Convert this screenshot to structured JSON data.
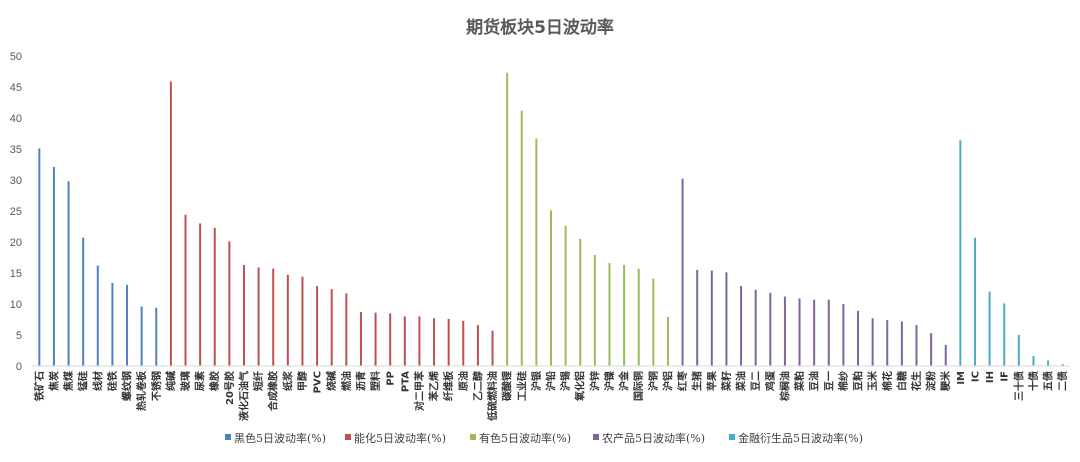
{
  "chart_data": {
    "type": "bar",
    "title": "期货板块5日波动率",
    "xlabel": "",
    "ylabel": "",
    "ylim": [
      0,
      50
    ],
    "yticks": [
      0,
      5,
      10,
      15,
      20,
      25,
      30,
      35,
      40,
      45,
      50
    ],
    "grid": false,
    "legend_position": "bottom",
    "series": [
      {
        "name": "黑色5日波动率(%)",
        "color": "#4f81bd",
        "categories": [
          "铁矿石",
          "焦炭",
          "焦煤",
          "锰硅",
          "线材",
          "硅铁",
          "螺纹钢",
          "热轧卷板",
          "不锈钢"
        ],
        "values": [
          35.1,
          32.1,
          29.8,
          20.7,
          16.2,
          13.4,
          13.1,
          9.6,
          9.4
        ]
      },
      {
        "name": "能化5日波动率(%)",
        "color": "#c0504d",
        "categories": [
          "纯碱",
          "玻璃",
          "尿素",
          "橡胶",
          "20号胶",
          "液化石油气",
          "短纤",
          "合成橡胶",
          "纸浆",
          "甲醇",
          "PVC",
          "烧碱",
          "燃油",
          "沥青",
          "塑料",
          "PP",
          "PTA",
          "对二甲苯",
          "苯乙烯",
          "纤维板",
          "原油",
          "乙二醇",
          "低硫燃料油"
        ],
        "values": [
          45.9,
          24.4,
          23.0,
          22.3,
          20.1,
          16.3,
          15.9,
          15.7,
          14.7,
          14.4,
          12.9,
          12.4,
          11.7,
          8.7,
          8.6,
          8.5,
          8.0,
          8.0,
          7.7,
          7.6,
          7.3,
          6.6,
          5.7
        ]
      },
      {
        "name": "有色5日波动率(%)",
        "color": "#9bbb59",
        "categories": [
          "碳酸锂",
          "工业硅",
          "沪银",
          "沪铅",
          "沪锡",
          "氧化铝",
          "沪锌",
          "沪镍",
          "沪金",
          "国际铜",
          "沪铜",
          "沪铝"
        ],
        "values": [
          47.3,
          41.2,
          36.7,
          25.1,
          22.6,
          20.5,
          17.9,
          16.6,
          16.3,
          15.7,
          14.1,
          7.9
        ]
      },
      {
        "name": "农产品5日波动率(%)",
        "color": "#8064a2",
        "categories": [
          "红枣",
          "生猪",
          "苹果",
          "菜籽",
          "菜油",
          "豆二",
          "鸡蛋",
          "棕榈油",
          "菜粕",
          "豆油",
          "豆一",
          "棉纱",
          "豆粕",
          "玉米",
          "棉花",
          "白糖",
          "花生",
          "淀粉",
          "粳米"
        ],
        "values": [
          30.2,
          15.5,
          15.4,
          15.1,
          12.9,
          12.3,
          11.8,
          11.2,
          10.9,
          10.7,
          10.7,
          10.0,
          8.9,
          7.7,
          7.4,
          7.2,
          6.6,
          5.3,
          3.4
        ]
      },
      {
        "name": "金融衍生品5日波动率(%)",
        "color": "#4bacc6",
        "categories": [
          "IM",
          "IC",
          "IH",
          "IF",
          "三十债",
          "十债",
          "五债",
          "二债"
        ],
        "values": [
          36.4,
          20.7,
          12.0,
          10.1,
          5.0,
          1.6,
          0.9,
          0.3
        ]
      }
    ]
  }
}
